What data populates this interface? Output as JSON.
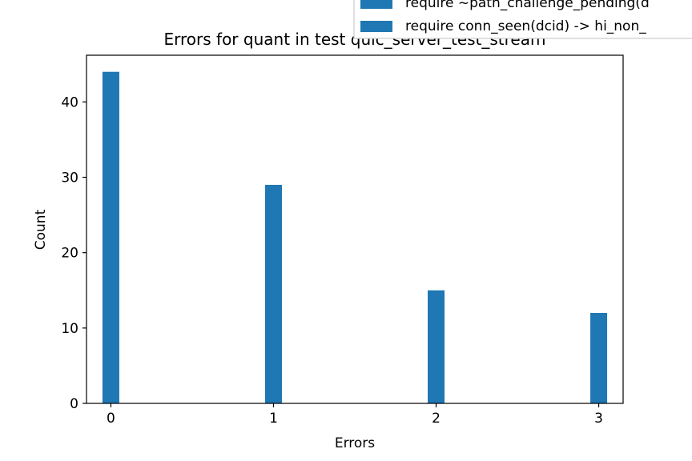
{
  "chart_data": {
    "type": "bar",
    "title": "Errors for quant in test quic_server_test_stream",
    "xlabel": "Errors",
    "ylabel": "Count",
    "xlim": [
      -0.15,
      3.15
    ],
    "ylim": [
      0,
      46.2
    ],
    "x_ticks": [
      0,
      1,
      2,
      3
    ],
    "y_ticks": [
      0,
      10,
      20,
      30,
      40
    ],
    "grid": false,
    "legend_position": "top-right",
    "series": [
      {
        "name": "require ~path_challenge_pending(d",
        "x": [
          0,
          1,
          2,
          3
        ],
        "values": [
          44,
          0,
          0,
          0
        ]
      },
      {
        "name": "require conn_seen(dcid) -> hi_non_",
        "x": [
          0,
          1,
          2,
          3
        ],
        "values": [
          0,
          29,
          15,
          12
        ]
      }
    ],
    "colors": {
      "bar": "#1f77b4",
      "axis": "#000000",
      "legend_border": "#cccccc"
    }
  }
}
